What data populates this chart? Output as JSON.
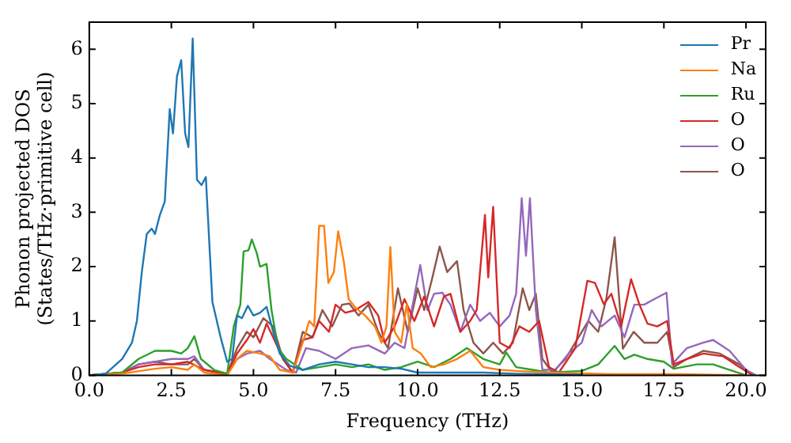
{
  "chart_data": {
    "type": "line",
    "xlabel": "Frequency (THz)",
    "ylabel": "Phonon projected DOS\n(States/THz·primitive cell)",
    "xlim": [
      0,
      20.6
    ],
    "ylim": [
      0,
      6.5
    ],
    "xticks": [
      {
        "value": 0,
        "label": "0.0"
      },
      {
        "value": 2.5,
        "label": "2.5"
      },
      {
        "value": 5,
        "label": "5.0"
      },
      {
        "value": 7.5,
        "label": "7.5"
      },
      {
        "value": 10,
        "label": "10.0"
      },
      {
        "value": 12.5,
        "label": "12.5"
      },
      {
        "value": 15,
        "label": "15.0"
      },
      {
        "value": 17.5,
        "label": "17.5"
      },
      {
        "value": 20,
        "label": "20.0"
      }
    ],
    "yticks": [
      0,
      1,
      2,
      3,
      4,
      5,
      6
    ],
    "grid": false,
    "legend": "top right",
    "marker": "none",
    "line_style": "solid",
    "series": [
      {
        "name": "Pr",
        "color": "#1f77b4",
        "x": [
          0,
          0.5,
          1.0,
          1.3,
          1.45,
          1.6,
          1.75,
          1.9,
          2.0,
          2.15,
          2.3,
          2.45,
          2.55,
          2.67,
          2.8,
          2.92,
          3.02,
          3.15,
          3.28,
          3.42,
          3.55,
          3.75,
          4.0,
          4.2,
          4.35,
          4.5,
          4.65,
          4.83,
          5.0,
          5.2,
          5.4,
          5.6,
          5.8,
          6.1,
          6.5,
          7.0,
          7.5,
          8.0,
          8.5,
          9.0,
          9.5,
          10.0,
          11,
          12,
          13,
          14,
          15
        ],
        "values": [
          0,
          0.03,
          0.3,
          0.6,
          1.0,
          1.9,
          2.6,
          2.7,
          2.6,
          2.95,
          3.2,
          4.9,
          4.45,
          5.5,
          5.8,
          4.45,
          4.2,
          6.2,
          3.6,
          3.5,
          3.65,
          1.35,
          0.7,
          0.25,
          0.3,
          1.1,
          1.05,
          1.28,
          1.1,
          1.15,
          1.26,
          0.8,
          0.4,
          0.18,
          0.1,
          0.2,
          0.25,
          0.2,
          0.15,
          0.15,
          0.12,
          0.05,
          0.05,
          0.05,
          0.03,
          0.02,
          0.01
        ]
      },
      {
        "name": "Na",
        "color": "#ff7f0e",
        "x": [
          0,
          1,
          2,
          2.5,
          3,
          3.2,
          3.5,
          4.2,
          4.5,
          4.8,
          5.2,
          5.5,
          5.8,
          6.2,
          6.5,
          6.7,
          6.85,
          7.0,
          7.15,
          7.28,
          7.45,
          7.58,
          7.75,
          7.9,
          8.1,
          8.4,
          8.7,
          8.9,
          9.05,
          9.17,
          9.3,
          9.5,
          9.67,
          9.85,
          10.1,
          10.4,
          10.8,
          11.2,
          11.6,
          12,
          12.5,
          13,
          14,
          16,
          18,
          20
        ],
        "values": [
          0,
          0.03,
          0.12,
          0.15,
          0.1,
          0.2,
          0.05,
          0,
          0.3,
          0.45,
          0.4,
          0.35,
          0.1,
          0.05,
          0.6,
          1.0,
          0.9,
          2.75,
          2.75,
          1.7,
          1.9,
          2.65,
          2.1,
          1.4,
          1.25,
          1.1,
          0.9,
          0.6,
          0.9,
          2.36,
          0.8,
          0.6,
          1.32,
          0.5,
          0.4,
          0.15,
          0.2,
          0.3,
          0.45,
          0.15,
          0.1,
          0.08,
          0.05,
          0.02,
          0.02,
          0
        ]
      },
      {
        "name": "Ru",
        "color": "#2ca02c",
        "x": [
          0,
          1,
          1.5,
          2,
          2.5,
          2.8,
          3.0,
          3.2,
          3.4,
          3.8,
          4.2,
          4.4,
          4.6,
          4.7,
          4.85,
          4.95,
          5.1,
          5.2,
          5.4,
          5.55,
          5.75,
          6.0,
          6.5,
          7.0,
          7.5,
          8,
          8.5,
          9,
          9.5,
          10,
          10.5,
          11,
          11.5,
          12,
          12.5,
          12.7,
          13,
          13.5,
          14,
          15,
          15.5,
          16.0,
          16.3,
          16.6,
          17,
          17.5,
          17.8,
          18.5,
          19,
          19.5,
          20
        ],
        "values": [
          0,
          0.05,
          0.3,
          0.45,
          0.45,
          0.4,
          0.5,
          0.72,
          0.3,
          0.1,
          0.03,
          0.9,
          1.3,
          2.28,
          2.3,
          2.5,
          2.25,
          2.0,
          2.05,
          1.2,
          0.5,
          0.3,
          0.1,
          0.15,
          0.2,
          0.15,
          0.2,
          0.1,
          0.15,
          0.25,
          0.15,
          0.3,
          0.5,
          0.3,
          0.2,
          0.42,
          0.15,
          0.1,
          0.05,
          0.08,
          0.2,
          0.54,
          0.3,
          0.38,
          0.3,
          0.25,
          0.12,
          0.2,
          0.2,
          0.1,
          0
        ]
      },
      {
        "name": "O",
        "color": "#d62728",
        "x": [
          0,
          1,
          1.5,
          2,
          2.5,
          3,
          3.5,
          4.2,
          4.5,
          4.8,
          5.0,
          5.2,
          5.4,
          5.6,
          5.9,
          6.2,
          6.5,
          6.8,
          7.0,
          7.3,
          7.5,
          7.8,
          8.1,
          8.5,
          8.8,
          9.0,
          9.3,
          9.6,
          9.9,
          10.2,
          10.5,
          10.8,
          11.0,
          11.3,
          11.6,
          11.8,
          12.05,
          12.15,
          12.3,
          12.5,
          12.8,
          13.1,
          13.4,
          13.7,
          14.0,
          14.3,
          14.8,
          15.17,
          15.4,
          15.67,
          15.9,
          16.2,
          16.5,
          16.75,
          17.0,
          17.3,
          17.6,
          17.8,
          18.2,
          18.7,
          19.3,
          19.8,
          20.2
        ],
        "values": [
          0,
          0.05,
          0.15,
          0.2,
          0.2,
          0.25,
          0.1,
          0.02,
          0.4,
          0.65,
          0.85,
          0.6,
          0.95,
          0.7,
          0.3,
          0.05,
          0.65,
          0.7,
          1.0,
          0.8,
          1.3,
          1.15,
          1.2,
          1.35,
          1.1,
          0.6,
          0.9,
          1.4,
          1.0,
          1.45,
          0.9,
          1.45,
          1.5,
          0.8,
          1.0,
          1.2,
          2.95,
          1.8,
          3.1,
          0.6,
          0.5,
          0.9,
          0.8,
          1.0,
          0.15,
          0.05,
          0.5,
          1.74,
          1.7,
          1.31,
          1.5,
          0.9,
          1.77,
          1.31,
          0.95,
          0.9,
          1.0,
          0.2,
          0.3,
          0.4,
          0.35,
          0.15,
          0
        ]
      },
      {
        "name": "O",
        "color": "#9467bd",
        "x": [
          0,
          1,
          1.5,
          2,
          2.5,
          3,
          3.2,
          3.5,
          4.2,
          4.5,
          4.8,
          5.2,
          5.5,
          6,
          6.3,
          6.6,
          7,
          7.5,
          8,
          8.5,
          9,
          9.3,
          9.6,
          9.85,
          10.08,
          10.3,
          10.5,
          10.75,
          11,
          11.3,
          11.6,
          11.9,
          12.2,
          12.5,
          12.8,
          13.0,
          13.17,
          13.3,
          13.42,
          13.6,
          13.8,
          14.2,
          14.6,
          15.0,
          15.3,
          15.6,
          16.0,
          16.3,
          16.6,
          16.9,
          17.2,
          17.58,
          17.75,
          18.2,
          18.7,
          19.0,
          19.5,
          20.0,
          20.3
        ],
        "values": [
          0,
          0.05,
          0.2,
          0.25,
          0.3,
          0.3,
          0.35,
          0.1,
          0.02,
          0.3,
          0.4,
          0.45,
          0.3,
          0.1,
          0.05,
          0.5,
          0.45,
          0.3,
          0.5,
          0.55,
          0.4,
          0.6,
          0.5,
          1.3,
          2.03,
          1.2,
          1.5,
          1.52,
          1.3,
          0.8,
          1.3,
          1.0,
          1.15,
          0.9,
          1.1,
          1.5,
          3.26,
          2.2,
          3.26,
          1.2,
          0.1,
          0.1,
          0.4,
          0.6,
          1.2,
          0.9,
          1.1,
          0.7,
          1.3,
          1.3,
          1.4,
          1.52,
          0.2,
          0.5,
          0.6,
          0.65,
          0.45,
          0.1,
          0
        ]
      },
      {
        "name": "O",
        "color": "#8c564b",
        "x": [
          0,
          1,
          1.5,
          2,
          2.5,
          3,
          3.2,
          3.5,
          4.2,
          4.5,
          4.8,
          5.0,
          5.3,
          5.6,
          5.9,
          6.2,
          6.5,
          6.8,
          7.1,
          7.4,
          7.7,
          7.92,
          8.2,
          8.5,
          8.8,
          9.1,
          9.4,
          9.7,
          10.0,
          10.2,
          10.45,
          10.67,
          10.9,
          11.2,
          11.4,
          11.7,
          12.0,
          12.3,
          12.6,
          12.9,
          13.2,
          13.4,
          13.6,
          13.8,
          14.1,
          14.5,
          14.9,
          15.2,
          15.5,
          15.75,
          16.0,
          16.25,
          16.58,
          16.9,
          17.3,
          17.6,
          17.8,
          18.2,
          18.7,
          19.2,
          19.8,
          20.2
        ],
        "values": [
          0,
          0.05,
          0.2,
          0.25,
          0.2,
          0.2,
          0.3,
          0.1,
          0.02,
          0.5,
          0.8,
          0.7,
          1.05,
          0.9,
          0.3,
          0.05,
          0.8,
          0.7,
          1.2,
          0.9,
          1.3,
          1.32,
          1.1,
          1.3,
          0.8,
          0.5,
          1.6,
          0.8,
          1.6,
          1.2,
          1.8,
          2.37,
          1.9,
          2.1,
          1.2,
          0.6,
          0.4,
          0.6,
          0.4,
          0.6,
          1.6,
          1.2,
          1.5,
          0.3,
          0.05,
          0.3,
          0.7,
          1.0,
          0.8,
          1.42,
          2.54,
          0.49,
          0.8,
          0.6,
          0.6,
          0.8,
          0.15,
          0.3,
          0.45,
          0.4,
          0.2,
          0
        ]
      }
    ]
  }
}
